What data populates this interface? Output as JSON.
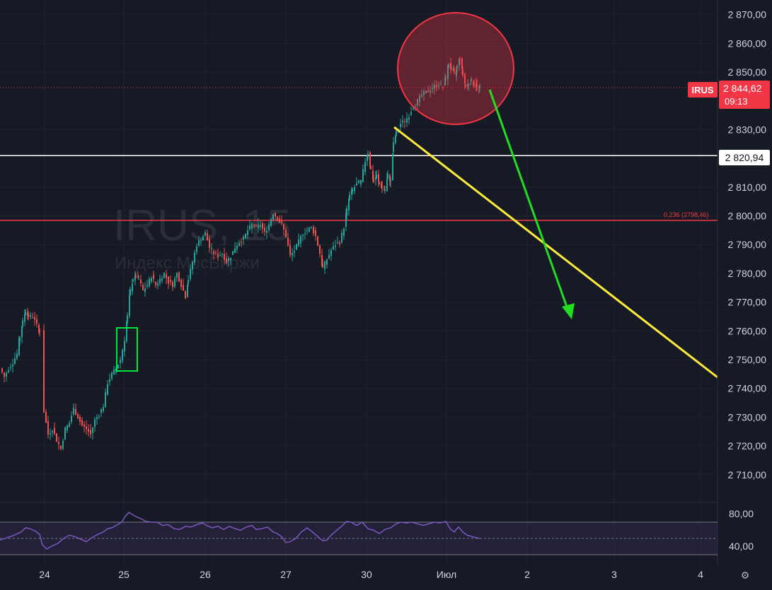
{
  "chart_data": [
    {
      "type": "candlestick",
      "symbol": "IRUS",
      "interval": "15",
      "watermark_title": "IRUS, 15",
      "watermark_subtitle": "Индекс МосБиржи",
      "x_tick_labels": [
        "24",
        "25",
        "26",
        "27",
        "30",
        "Июл",
        "2",
        "3",
        "4"
      ],
      "y_tick_labels": [
        "2 870,00",
        "2 860,00",
        "2 850,00",
        "2 830,00",
        "2 810,00",
        "2 800,00",
        "2 790,00",
        "2 780,00",
        "2 770,00",
        "2 760,00",
        "2 750,00",
        "2 740,00",
        "2 730,00",
        "2 720,00",
        "2 710,00"
      ],
      "ylim": [
        2700,
        2875
      ],
      "close_path": [
        [
          0,
          2747
        ],
        [
          6,
          2744
        ],
        [
          12,
          2747
        ],
        [
          18,
          2749
        ],
        [
          24,
          2752
        ],
        [
          28,
          2758
        ],
        [
          32,
          2763
        ],
        [
          36,
          2767
        ],
        [
          40,
          2765
        ],
        [
          46,
          2765
        ],
        [
          52,
          2762
        ],
        [
          56,
          2760
        ],
        [
          62,
          2732
        ],
        [
          68,
          2724
        ],
        [
          74,
          2726
        ],
        [
          80,
          2722
        ],
        [
          86,
          2719
        ],
        [
          92,
          2726
        ],
        [
          98,
          2728
        ],
        [
          104,
          2733
        ],
        [
          110,
          2730
        ],
        [
          116,
          2727
        ],
        [
          122,
          2726
        ],
        [
          128,
          2724
        ],
        [
          134,
          2729
        ],
        [
          140,
          2731
        ],
        [
          146,
          2734
        ],
        [
          152,
          2742
        ],
        [
          158,
          2745
        ],
        [
          164,
          2747
        ],
        [
          170,
          2750
        ],
        [
          176,
          2757
        ],
        [
          180,
          2765
        ],
        [
          184,
          2774
        ],
        [
          188,
          2778
        ],
        [
          192,
          2779
        ],
        [
          196,
          2778
        ],
        [
          202,
          2774
        ],
        [
          208,
          2776
        ],
        [
          214,
          2779
        ],
        [
          220,
          2776
        ],
        [
          226,
          2778
        ],
        [
          232,
          2780
        ],
        [
          238,
          2777
        ],
        [
          244,
          2776
        ],
        [
          250,
          2780
        ],
        [
          256,
          2776
        ],
        [
          262,
          2772
        ],
        [
          266,
          2778
        ],
        [
          272,
          2784
        ],
        [
          278,
          2790
        ],
        [
          284,
          2792
        ],
        [
          290,
          2794
        ],
        [
          296,
          2789
        ],
        [
          302,
          2787
        ],
        [
          308,
          2786
        ],
        [
          314,
          2787
        ],
        [
          320,
          2784
        ],
        [
          326,
          2786
        ],
        [
          332,
          2789
        ],
        [
          338,
          2791
        ],
        [
          344,
          2792
        ],
        [
          350,
          2795
        ],
        [
          356,
          2797
        ],
        [
          362,
          2796
        ],
        [
          368,
          2797
        ],
        [
          374,
          2794
        ],
        [
          380,
          2797
        ],
        [
          386,
          2801
        ],
        [
          392,
          2799
        ],
        [
          398,
          2797
        ],
        [
          404,
          2793
        ],
        [
          410,
          2786
        ],
        [
          416,
          2788
        ],
        [
          422,
          2791
        ],
        [
          428,
          2794
        ],
        [
          434,
          2795
        ],
        [
          440,
          2796
        ],
        [
          446,
          2793
        ],
        [
          452,
          2787
        ],
        [
          456,
          2782
        ],
        [
          462,
          2785
        ],
        [
          468,
          2788
        ],
        [
          474,
          2790
        ],
        [
          480,
          2791
        ],
        [
          486,
          2796
        ],
        [
          490,
          2802
        ],
        [
          494,
          2807
        ],
        [
          498,
          2809
        ],
        [
          504,
          2811
        ],
        [
          510,
          2812
        ],
        [
          516,
          2819
        ],
        [
          520,
          2822
        ],
        [
          524,
          2816
        ],
        [
          528,
          2812
        ],
        [
          532,
          2814
        ],
        [
          536,
          2811
        ],
        [
          540,
          2810
        ],
        [
          544,
          2809
        ],
        [
          548,
          2814
        ],
        [
          552,
          2812
        ],
        [
          556,
          2825
        ],
        [
          560,
          2829
        ],
        [
          566,
          2832
        ],
        [
          572,
          2833
        ],
        [
          578,
          2835
        ],
        [
          584,
          2838
        ],
        [
          590,
          2840
        ],
        [
          596,
          2842
        ],
        [
          602,
          2843
        ],
        [
          608,
          2844
        ],
        [
          614,
          2845
        ],
        [
          620,
          2846
        ],
        [
          626,
          2845
        ],
        [
          630,
          2848
        ],
        [
          634,
          2853
        ],
        [
          638,
          2851
        ],
        [
          642,
          2849
        ],
        [
          646,
          2852
        ],
        [
          650,
          2855
        ],
        [
          654,
          2849
        ],
        [
          658,
          2845
        ],
        [
          662,
          2846
        ],
        [
          666,
          2847
        ],
        [
          670,
          2846
        ],
        [
          674,
          2845
        ],
        [
          678,
          2844.62
        ]
      ],
      "price_lines": [
        {
          "value": 2844.62,
          "color": "#f23645",
          "style": "dotted"
        },
        {
          "value": 2820.94,
          "color": "#ffffff",
          "style": "solid"
        },
        {
          "value": 2798.46,
          "color": "#f23645",
          "style": "solid",
          "label": "0,236 (2798,46)"
        }
      ],
      "last_price": {
        "symbol": "IRUS",
        "price": "2 844,62",
        "countdown": "09:13"
      },
      "white_line_label": "2 820,94",
      "colors": {
        "background": "#161a25",
        "up": "#26a69a",
        "down": "#ef5350",
        "fib_line": "#f23645",
        "label_red": "#f23645"
      }
    },
    {
      "type": "line",
      "indicator": "oscillator",
      "y_tick_labels": [
        "80,00",
        "40,00"
      ],
      "ylim": [
        32,
        88
      ],
      "band": [
        30,
        70
      ],
      "mid_line": 50,
      "values": [
        [
          0,
          48
        ],
        [
          10,
          51
        ],
        [
          20,
          54
        ],
        [
          30,
          58
        ],
        [
          36,
          63
        ],
        [
          42,
          62
        ],
        [
          50,
          59
        ],
        [
          56,
          55
        ],
        [
          60,
          42
        ],
        [
          66,
          37
        ],
        [
          74,
          41
        ],
        [
          82,
          44
        ],
        [
          90,
          50
        ],
        [
          98,
          54
        ],
        [
          106,
          52
        ],
        [
          114,
          49
        ],
        [
          122,
          46
        ],
        [
          130,
          51
        ],
        [
          138,
          55
        ],
        [
          146,
          58
        ],
        [
          152,
          62
        ],
        [
          158,
          63
        ],
        [
          166,
          67
        ],
        [
          172,
          70
        ],
        [
          176,
          76
        ],
        [
          182,
          82
        ],
        [
          188,
          79
        ],
        [
          194,
          76
        ],
        [
          200,
          74
        ],
        [
          206,
          71
        ],
        [
          214,
          70
        ],
        [
          222,
          70
        ],
        [
          230,
          66
        ],
        [
          238,
          67
        ],
        [
          246,
          62
        ],
        [
          254,
          61
        ],
        [
          262,
          65
        ],
        [
          270,
          64
        ],
        [
          278,
          67
        ],
        [
          286,
          69
        ],
        [
          292,
          66
        ],
        [
          300,
          63
        ],
        [
          308,
          65
        ],
        [
          316,
          61
        ],
        [
          324,
          65
        ],
        [
          332,
          62
        ],
        [
          340,
          60
        ],
        [
          348,
          64
        ],
        [
          356,
          66
        ],
        [
          362,
          61
        ],
        [
          370,
          62
        ],
        [
          378,
          64
        ],
        [
          386,
          58
        ],
        [
          392,
          56
        ],
        [
          398,
          52
        ],
        [
          404,
          45
        ],
        [
          410,
          46
        ],
        [
          418,
          50
        ],
        [
          426,
          58
        ],
        [
          434,
          63
        ],
        [
          440,
          59
        ],
        [
          448,
          53
        ],
        [
          456,
          47
        ],
        [
          462,
          48
        ],
        [
          468,
          54
        ],
        [
          476,
          60
        ],
        [
          484,
          66
        ],
        [
          490,
          71
        ],
        [
          496,
          70
        ],
        [
          504,
          66
        ],
        [
          512,
          70
        ],
        [
          520,
          62
        ],
        [
          528,
          60
        ],
        [
          536,
          56
        ],
        [
          544,
          61
        ],
        [
          552,
          63
        ],
        [
          560,
          68
        ],
        [
          566,
          70
        ],
        [
          574,
          69
        ],
        [
          582,
          70
        ],
        [
          590,
          68
        ],
        [
          598,
          66
        ],
        [
          606,
          68
        ],
        [
          614,
          70
        ],
        [
          622,
          69
        ],
        [
          630,
          71
        ],
        [
          636,
          62
        ],
        [
          642,
          58
        ],
        [
          648,
          64
        ],
        [
          654,
          58
        ],
        [
          660,
          54
        ],
        [
          668,
          52
        ],
        [
          678,
          50
        ]
      ],
      "color": "#7e57c2"
    }
  ],
  "toolbar": {
    "settings_icon": "gear-icon"
  }
}
